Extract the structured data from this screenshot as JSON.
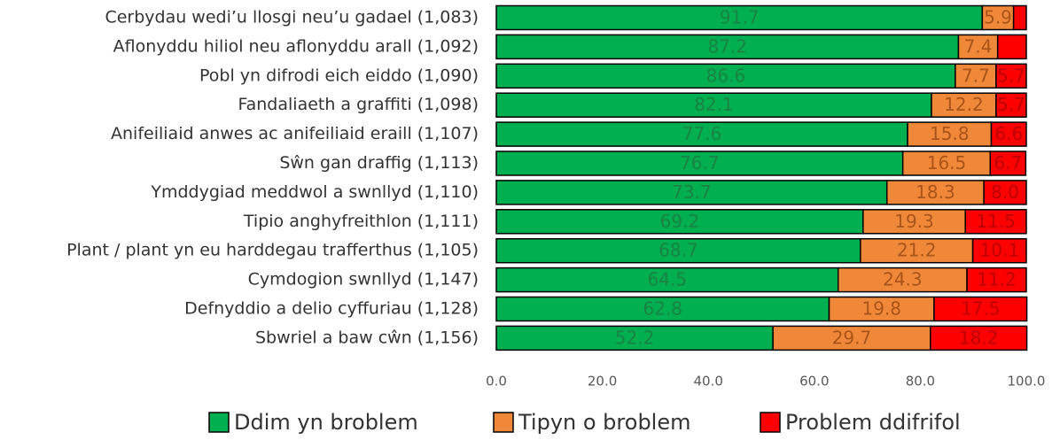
{
  "chart_data": {
    "type": "stacked-bar-horizontal",
    "categories": [
      "Cerbydau wedi’u llosgi neu’u gadael (1,083)",
      "Aflonyddu hiliol neu aflonyddu arall (1,092)",
      "Pobl yn difrodi eich eiddo (1,090)",
      "Fandaliaeth a graffiti (1,098)",
      "Anifeiliaid anwes ac anifeiliaid eraill (1,107)",
      "Sŵn gan draffig (1,113)",
      "Ymddygiad meddwol a swnllyd (1,110)",
      "Tipio anghyfreithlon (1,111)",
      "Plant / plant yn eu harddegau trafferthus (1,105)",
      "Cymdogion swnllyd (1,147)",
      "Defnyddio a delio cyffuriau (1,128)",
      "Sbwriel a baw cŵn (1,156)"
    ],
    "series": [
      {
        "name": "Ddim yn broblem",
        "color": "#00b050",
        "values": [
          91.7,
          87.2,
          86.6,
          82.1,
          77.6,
          76.7,
          73.7,
          69.2,
          68.7,
          64.5,
          62.8,
          52.2
        ],
        "value_labels": [
          "91.7",
          "87.2",
          "86.6",
          "82.1",
          "77.6",
          "76.7",
          "73.7",
          "69.2",
          "68.7",
          "64.5",
          "62.8",
          "52.2"
        ]
      },
      {
        "name": "Tipyn o broblem",
        "color": "#f0883a",
        "values": [
          5.9,
          7.4,
          7.7,
          12.2,
          15.8,
          16.5,
          18.3,
          19.3,
          21.2,
          24.3,
          19.8,
          29.7
        ],
        "value_labels": [
          "5.9",
          "7.4",
          "7.7",
          "12.2",
          "15.8",
          "16.5",
          "18.3",
          "19.3",
          "21.2",
          "24.3",
          "19.8",
          "29.7"
        ]
      },
      {
        "name": "Problem ddifrifol",
        "color": "#ff0000",
        "values": [
          2.4,
          5.4,
          5.7,
          5.7,
          6.6,
          6.7,
          8.0,
          11.5,
          10.1,
          11.2,
          17.5,
          18.2
        ],
        "value_labels": [
          null,
          null,
          "5.7",
          "5.7",
          "6.6",
          "6.7",
          "8.0",
          "11.5",
          "10.1",
          "11.2",
          "17.5",
          "18.2"
        ]
      }
    ],
    "xlim": [
      0,
      100
    ],
    "xticks": [
      {
        "value": 0,
        "label": "0.0"
      },
      {
        "value": 20,
        "label": "20.0"
      },
      {
        "value": 40,
        "label": "40.0"
      },
      {
        "value": 60,
        "label": "60.0"
      },
      {
        "value": 80,
        "label": "80.0"
      },
      {
        "value": 100,
        "label": "100.0"
      }
    ],
    "legend": "bottom"
  }
}
